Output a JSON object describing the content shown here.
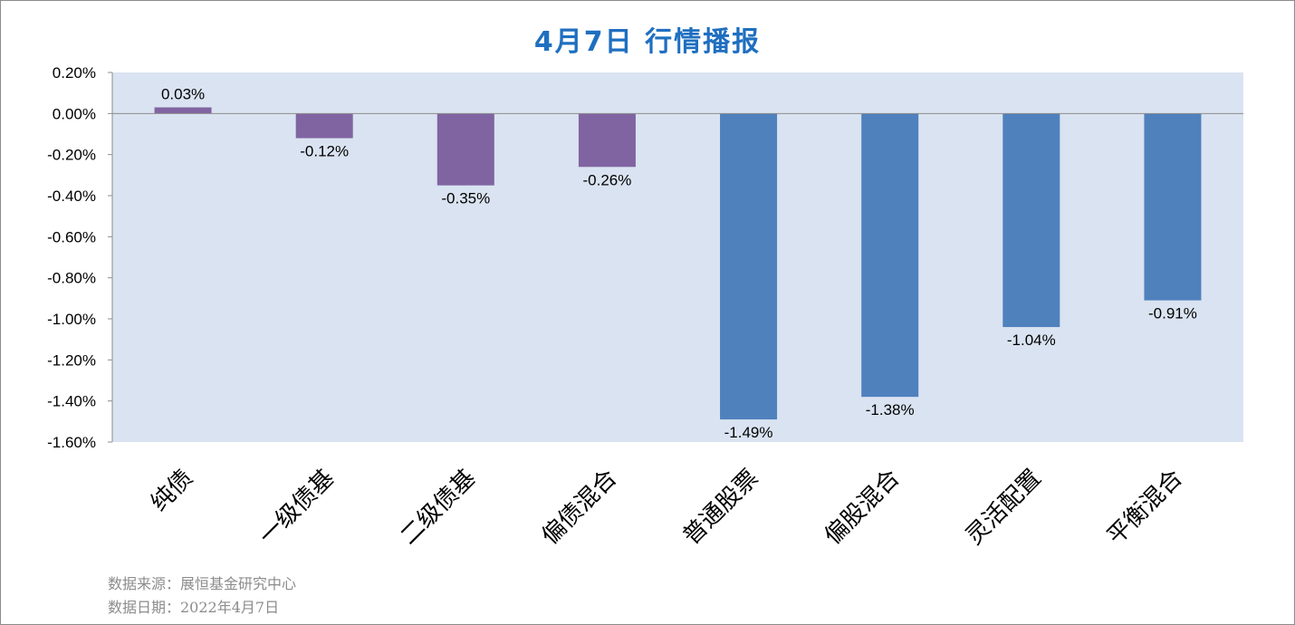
{
  "title": "4月7日  行情播报",
  "footer": {
    "source": "数据来源：展恒基金研究中心",
    "date": "数据日期：2022年4月7日"
  },
  "colors": {
    "plot_bg": "#dae3f1",
    "bond_bar": "#8064a2",
    "equity_bar": "#4f81bd",
    "title": "#1f6fc0"
  },
  "chart_data": {
    "type": "bar",
    "title": "4月7日  行情播报",
    "categories": [
      "纯债",
      "一级债基",
      "二级债基",
      "偏债混合",
      "普通股票",
      "偏股混合",
      "灵活配置",
      "平衡混合"
    ],
    "values": [
      0.03,
      -0.12,
      -0.35,
      -0.26,
      -1.49,
      -1.38,
      -1.04,
      -0.91
    ],
    "value_labels": [
      "0.03%",
      "-0.12%",
      "-0.35%",
      "-0.26%",
      "-1.49%",
      "-1.38%",
      "-1.04%",
      "-0.91%"
    ],
    "bar_groups": [
      "bond",
      "bond",
      "bond",
      "bond",
      "equity",
      "equity",
      "equity",
      "equity"
    ],
    "ylim": [
      -1.6,
      0.2
    ],
    "yticks": [
      0.2,
      0.0,
      -0.2,
      -0.4,
      -0.6,
      -0.8,
      -1.0,
      -1.2,
      -1.4,
      -1.6
    ],
    "ytick_labels": [
      "0.20%",
      "0.00%",
      "-0.20%",
      "-0.40%",
      "-0.60%",
      "-0.80%",
      "-1.00%",
      "-1.20%",
      "-1.40%",
      "-1.60%"
    ],
    "xlabel": "",
    "ylabel": "",
    "grid": false,
    "legend": "none",
    "x_tick_rotation_deg": -45
  }
}
